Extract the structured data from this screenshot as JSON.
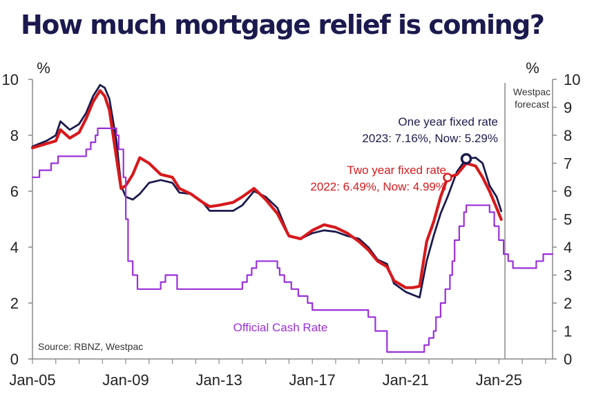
{
  "chart_data": {
    "type": "line",
    "title": "How much mortgage relief is coming?",
    "ylabel_left": "%",
    "ylabel_right": "%",
    "ylim": [
      0,
      10
    ],
    "yticks": [
      0,
      2,
      4,
      6,
      8,
      10
    ],
    "yticks_right": [
      0,
      1,
      2,
      3,
      4,
      5,
      6,
      7,
      8,
      9,
      10
    ],
    "xtick_labels": [
      "Jan-05",
      "Jan-09",
      "Jan-13",
      "Jan-17",
      "Jan-21",
      "Jan-25"
    ],
    "xtick_years": [
      2005,
      2009,
      2013,
      2017,
      2021,
      2025
    ],
    "xlim": [
      2005,
      2027.3
    ],
    "forecast_label": "Westpac forecast",
    "forecast_start": 2025.2,
    "source": "Source: RBNZ, Westpac",
    "series": [
      {
        "name": "One year fixed rate",
        "color": "#1b1a4e",
        "annotation": "2023: 7.16%, Now: 5.29%",
        "points": [
          [
            2005.0,
            7.6
          ],
          [
            2005.6,
            7.8
          ],
          [
            2006.0,
            8.0
          ],
          [
            2006.2,
            8.5
          ],
          [
            2006.6,
            8.2
          ],
          [
            2007.0,
            8.4
          ],
          [
            2007.3,
            8.8
          ],
          [
            2007.6,
            9.4
          ],
          [
            2007.9,
            9.8
          ],
          [
            2008.1,
            9.7
          ],
          [
            2008.3,
            9.3
          ],
          [
            2008.6,
            7.8
          ],
          [
            2008.8,
            6.2
          ],
          [
            2009.0,
            5.8
          ],
          [
            2009.3,
            5.7
          ],
          [
            2009.6,
            5.9
          ],
          [
            2010.0,
            6.3
          ],
          [
            2010.5,
            6.4
          ],
          [
            2011.0,
            6.3
          ],
          [
            2011.3,
            5.95
          ],
          [
            2011.8,
            5.9
          ],
          [
            2012.3,
            5.6
          ],
          [
            2012.6,
            5.3
          ],
          [
            2013.0,
            5.3
          ],
          [
            2013.6,
            5.3
          ],
          [
            2014.0,
            5.5
          ],
          [
            2014.5,
            6.0
          ],
          [
            2015.0,
            5.8
          ],
          [
            2015.5,
            5.4
          ],
          [
            2016.0,
            4.4
          ],
          [
            2016.5,
            4.3
          ],
          [
            2017.0,
            4.5
          ],
          [
            2017.5,
            4.6
          ],
          [
            2018.0,
            4.55
          ],
          [
            2018.5,
            4.4
          ],
          [
            2019.0,
            4.3
          ],
          [
            2019.4,
            4.0
          ],
          [
            2019.8,
            3.55
          ],
          [
            2020.2,
            3.4
          ],
          [
            2020.5,
            2.7
          ],
          [
            2021.0,
            2.4
          ],
          [
            2021.3,
            2.3
          ],
          [
            2021.6,
            2.2
          ],
          [
            2021.9,
            3.5
          ],
          [
            2022.2,
            4.4
          ],
          [
            2022.5,
            5.2
          ],
          [
            2022.8,
            5.8
          ],
          [
            2023.2,
            6.7
          ],
          [
            2023.6,
            7.16
          ],
          [
            2024.0,
            7.2
          ],
          [
            2024.3,
            7.0
          ],
          [
            2024.6,
            6.2
          ],
          [
            2024.9,
            5.8
          ],
          [
            2025.1,
            5.29
          ]
        ]
      },
      {
        "name": "Two year fixed rate",
        "color": "#d7191c",
        "annotation": "2022: 6.49%, Now: 4.99%",
        "points": [
          [
            2005.0,
            7.55
          ],
          [
            2005.6,
            7.7
          ],
          [
            2006.0,
            7.8
          ],
          [
            2006.2,
            8.2
          ],
          [
            2006.6,
            7.9
          ],
          [
            2007.0,
            8.1
          ],
          [
            2007.3,
            8.6
          ],
          [
            2007.6,
            9.2
          ],
          [
            2007.9,
            9.6
          ],
          [
            2008.1,
            9.4
          ],
          [
            2008.3,
            8.9
          ],
          [
            2008.6,
            7.2
          ],
          [
            2008.8,
            6.1
          ],
          [
            2009.0,
            6.2
          ],
          [
            2009.3,
            6.6
          ],
          [
            2009.6,
            7.2
          ],
          [
            2010.0,
            7.0
          ],
          [
            2010.5,
            6.6
          ],
          [
            2011.0,
            6.5
          ],
          [
            2011.3,
            6.1
          ],
          [
            2011.8,
            5.9
          ],
          [
            2012.3,
            5.6
          ],
          [
            2012.6,
            5.45
          ],
          [
            2013.0,
            5.5
          ],
          [
            2013.6,
            5.6
          ],
          [
            2014.0,
            5.8
          ],
          [
            2014.5,
            6.1
          ],
          [
            2015.0,
            5.7
          ],
          [
            2015.5,
            5.2
          ],
          [
            2016.0,
            4.4
          ],
          [
            2016.5,
            4.3
          ],
          [
            2017.0,
            4.6
          ],
          [
            2017.5,
            4.8
          ],
          [
            2018.0,
            4.7
          ],
          [
            2018.5,
            4.5
          ],
          [
            2019.0,
            4.2
          ],
          [
            2019.4,
            3.9
          ],
          [
            2019.8,
            3.5
          ],
          [
            2020.2,
            3.3
          ],
          [
            2020.5,
            2.8
          ],
          [
            2021.0,
            2.55
          ],
          [
            2021.3,
            2.55
          ],
          [
            2021.6,
            2.6
          ],
          [
            2021.9,
            4.2
          ],
          [
            2022.2,
            4.9
          ],
          [
            2022.5,
            5.8
          ],
          [
            2022.8,
            6.49
          ],
          [
            2023.2,
            6.6
          ],
          [
            2023.6,
            7.0
          ],
          [
            2024.0,
            6.9
          ],
          [
            2024.3,
            6.5
          ],
          [
            2024.6,
            6.0
          ],
          [
            2024.9,
            5.4
          ],
          [
            2025.1,
            4.99
          ]
        ]
      },
      {
        "name": "Official Cash Rate",
        "color": "#9b30d9",
        "axis": "right",
        "step": true,
        "points": [
          [
            2005.0,
            6.5
          ],
          [
            2005.3,
            6.75
          ],
          [
            2005.8,
            7.0
          ],
          [
            2006.1,
            7.25
          ],
          [
            2007.3,
            7.5
          ],
          [
            2007.5,
            7.75
          ],
          [
            2007.7,
            8.0
          ],
          [
            2007.8,
            8.25
          ],
          [
            2008.6,
            8.0
          ],
          [
            2008.7,
            7.5
          ],
          [
            2008.9,
            6.5
          ],
          [
            2009.0,
            5.0
          ],
          [
            2009.1,
            3.5
          ],
          [
            2009.3,
            3.0
          ],
          [
            2009.5,
            2.5
          ],
          [
            2010.5,
            2.75
          ],
          [
            2010.7,
            3.0
          ],
          [
            2011.2,
            2.5
          ],
          [
            2014.0,
            2.75
          ],
          [
            2014.2,
            3.0
          ],
          [
            2014.4,
            3.25
          ],
          [
            2014.6,
            3.5
          ],
          [
            2015.5,
            3.25
          ],
          [
            2015.6,
            3.0
          ],
          [
            2015.8,
            2.75
          ],
          [
            2016.1,
            2.5
          ],
          [
            2016.4,
            2.25
          ],
          [
            2016.8,
            2.0
          ],
          [
            2017.0,
            1.75
          ],
          [
            2019.4,
            1.5
          ],
          [
            2019.7,
            1.0
          ],
          [
            2020.2,
            0.25
          ],
          [
            2021.8,
            0.5
          ],
          [
            2022.0,
            0.75
          ],
          [
            2022.2,
            1.0
          ],
          [
            2022.3,
            1.5
          ],
          [
            2022.5,
            2.0
          ],
          [
            2022.7,
            2.5
          ],
          [
            2022.9,
            3.0
          ],
          [
            2023.0,
            3.5
          ],
          [
            2023.1,
            4.25
          ],
          [
            2023.3,
            4.75
          ],
          [
            2023.5,
            5.25
          ],
          [
            2023.6,
            5.5
          ],
          [
            2024.6,
            5.25
          ],
          [
            2024.8,
            4.75
          ],
          [
            2025.0,
            4.25
          ],
          [
            2025.2,
            3.75
          ],
          [
            2025.4,
            3.5
          ],
          [
            2025.6,
            3.25
          ],
          [
            2026.6,
            3.5
          ],
          [
            2026.9,
            3.75
          ],
          [
            2027.3,
            3.75
          ]
        ]
      }
    ]
  }
}
